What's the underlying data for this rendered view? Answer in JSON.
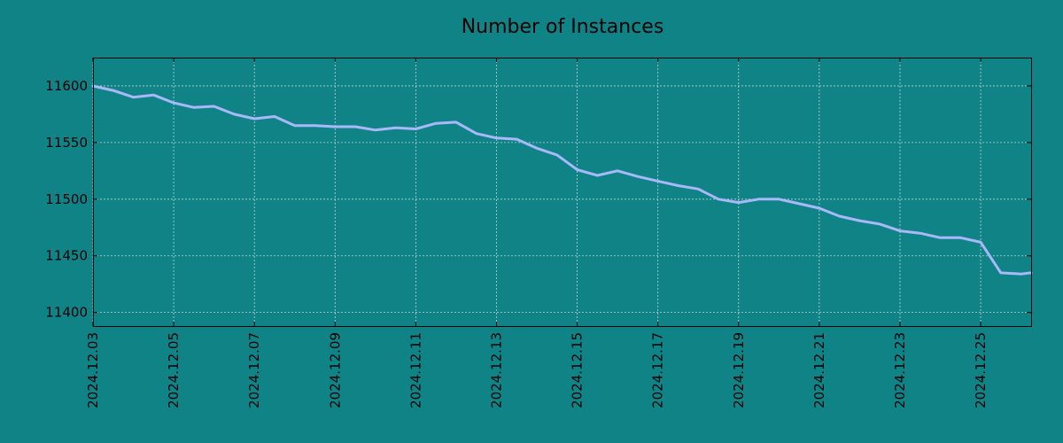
{
  "chart_data": {
    "type": "line",
    "title": "Number of Instances",
    "xlabel": "",
    "ylabel": "",
    "background_color": "#108387",
    "line_color": "#a8b8f8",
    "grid": true,
    "x_range": [
      "2024-12-03",
      "2024-12-26 06:00"
    ],
    "ylim": [
      11388,
      11625
    ],
    "x_ticks": [
      "2024.12.03",
      "2024.12.05",
      "2024.12.07",
      "2024.12.09",
      "2024.12.11",
      "2024.12.13",
      "2024.12.15",
      "2024.12.17",
      "2024.12.19",
      "2024.12.21",
      "2024.12.23",
      "2024.12.25"
    ],
    "y_ticks": [
      11400,
      11450,
      11500,
      11550,
      11600
    ],
    "series": [
      {
        "x": [
          "2024-12-03 00:00",
          "2024-12-03 12:00",
          "2024-12-04 00:00",
          "2024-12-04 12:00",
          "2024-12-05 00:00",
          "2024-12-05 12:00",
          "2024-12-06 00:00",
          "2024-12-06 12:00",
          "2024-12-07 00:00",
          "2024-12-07 12:00",
          "2024-12-08 00:00",
          "2024-12-08 12:00",
          "2024-12-09 00:00",
          "2024-12-09 12:00",
          "2024-12-10 00:00",
          "2024-12-10 12:00",
          "2024-12-11 00:00",
          "2024-12-11 12:00",
          "2024-12-12 00:00",
          "2024-12-12 12:00",
          "2024-12-13 00:00",
          "2024-12-13 12:00",
          "2024-12-14 00:00",
          "2024-12-14 12:00",
          "2024-12-15 00:00",
          "2024-12-15 12:00",
          "2024-12-16 00:00",
          "2024-12-16 12:00",
          "2024-12-17 00:00",
          "2024-12-17 12:00",
          "2024-12-18 00:00",
          "2024-12-18 12:00",
          "2024-12-19 00:00",
          "2024-12-19 12:00",
          "2024-12-20 00:00",
          "2024-12-20 12:00",
          "2024-12-21 00:00",
          "2024-12-21 12:00",
          "2024-12-22 00:00",
          "2024-12-22 12:00",
          "2024-12-23 00:00",
          "2024-12-23 12:00",
          "2024-12-24 00:00",
          "2024-12-24 12:00",
          "2024-12-25 00:00",
          "2024-12-25 12:00",
          "2024-12-26 00:00",
          "2024-12-26 06:00"
        ],
        "values": [
          11600,
          11596,
          11590,
          11592,
          11585,
          11581,
          11582,
          11575,
          11571,
          11573,
          11565,
          11565,
          11564,
          11564,
          11561,
          11563,
          11562,
          11567,
          11568,
          11558,
          11554,
          11553,
          11545,
          11539,
          11526,
          11521,
          11525,
          11520,
          11516,
          11512,
          11509,
          11500,
          11497,
          11500,
          11500,
          11496,
          11492,
          11485,
          11481,
          11478,
          11472,
          11470,
          11466,
          11466,
          11462,
          11435,
          11434,
          11435
        ]
      }
    ]
  }
}
